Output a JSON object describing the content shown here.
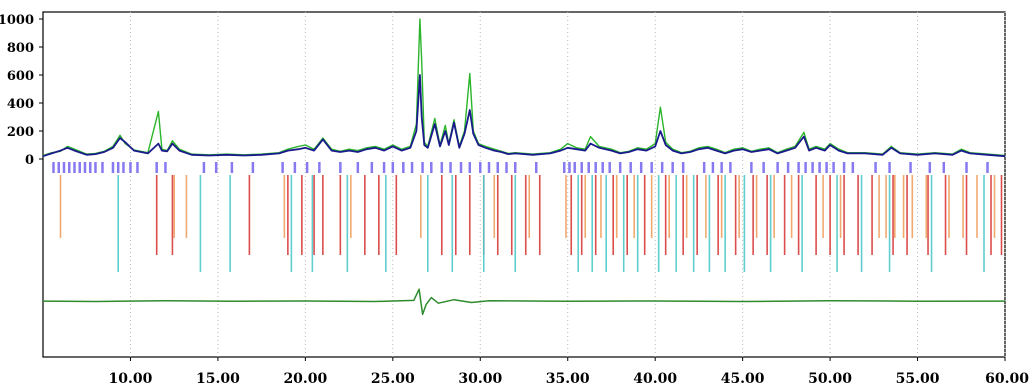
{
  "chart_data": {
    "type": "line",
    "title": "",
    "xlabel": "",
    "ylabel": "",
    "xlim": [
      5.0,
      60.0
    ],
    "ylim": [
      0,
      1000
    ],
    "x_ticks": [
      "10.00",
      "15.00",
      "20.00",
      "25.00",
      "30.00",
      "35.00",
      "40.00",
      "45.00",
      "50.00",
      "55.00",
      "60.00"
    ],
    "y_ticks": [
      "0",
      "200",
      "400",
      "600",
      "800",
      "1000"
    ],
    "grid": "vertical dotted",
    "legend": "none",
    "colors": {
      "observed": "#1a1a8c",
      "calculated": "#2bb52b",
      "difference": "#2e8b2e",
      "reflection_phase_1": "#7b6cf0",
      "reflection_phase_2": "#d93a3a",
      "reflection_phase_3": "#f0a060",
      "reflection_phase_4": "#4fc9c9"
    },
    "series": [
      {
        "role": "observed",
        "x": [
          5.0,
          5.5,
          6.0,
          6.4,
          6.8,
          7.5,
          8.0,
          8.5,
          9.0,
          9.4,
          9.7,
          10.2,
          11.0,
          11.6,
          11.8,
          12.1,
          12.4,
          12.8,
          13.5,
          14.5,
          15.5,
          16.5,
          17.5,
          18.5,
          19.0,
          19.6,
          20.0,
          20.5,
          21.0,
          21.5,
          22.0,
          22.5,
          23.0,
          23.5,
          24.0,
          24.5,
          25.0,
          25.5,
          26.0,
          26.35,
          26.55,
          26.65,
          26.8,
          27.0,
          27.4,
          27.7,
          28.0,
          28.2,
          28.5,
          28.8,
          29.1,
          29.4,
          29.6,
          29.9,
          30.3,
          30.8,
          31.2,
          31.6,
          32.0,
          33.0,
          34.0,
          34.6,
          35.0,
          35.5,
          36.0,
          36.3,
          36.8,
          37.5,
          38.0,
          38.5,
          39.0,
          39.5,
          40.0,
          40.3,
          40.6,
          41.0,
          41.5,
          42.0,
          42.5,
          43.0,
          43.5,
          44.0,
          44.5,
          45.0,
          45.5,
          46.0,
          46.5,
          47.0,
          47.5,
          48.0,
          48.5,
          48.8,
          49.2,
          49.7,
          50.0,
          50.5,
          51.0,
          52.0,
          53.0,
          53.5,
          54.0,
          55.0,
          56.0,
          57.0,
          57.5,
          58.0,
          59.0,
          60.0
        ],
        "y": [
          20,
          40,
          60,
          80,
          60,
          30,
          35,
          50,
          80,
          150,
          120,
          60,
          40,
          110,
          60,
          55,
          110,
          60,
          30,
          25,
          30,
          25,
          30,
          40,
          60,
          70,
          80,
          60,
          140,
          60,
          50,
          60,
          50,
          70,
          80,
          60,
          90,
          60,
          80,
          200,
          600,
          300,
          100,
          80,
          250,
          90,
          200,
          100,
          260,
          80,
          180,
          350,
          180,
          100,
          80,
          60,
          50,
          35,
          40,
          30,
          40,
          60,
          80,
          70,
          60,
          110,
          80,
          60,
          40,
          50,
          70,
          60,
          90,
          200,
          100,
          60,
          40,
          50,
          70,
          80,
          60,
          40,
          60,
          70,
          50,
          60,
          70,
          40,
          60,
          80,
          160,
          60,
          80,
          60,
          100,
          60,
          40,
          40,
          30,
          80,
          40,
          30,
          40,
          30,
          60,
          40,
          30,
          20
        ]
      },
      {
        "role": "calculated",
        "x": [
          5.0,
          5.5,
          6.0,
          6.4,
          6.8,
          7.5,
          8.0,
          8.5,
          9.0,
          9.4,
          9.7,
          10.2,
          11.0,
          11.6,
          11.8,
          12.1,
          12.4,
          12.8,
          13.5,
          14.5,
          15.5,
          16.5,
          17.5,
          18.5,
          19.0,
          19.6,
          20.0,
          20.5,
          21.0,
          21.5,
          22.0,
          22.5,
          23.0,
          23.5,
          24.0,
          24.5,
          25.0,
          25.5,
          26.0,
          26.35,
          26.55,
          26.65,
          26.8,
          27.0,
          27.4,
          27.7,
          28.0,
          28.2,
          28.5,
          28.8,
          29.1,
          29.4,
          29.6,
          29.9,
          30.3,
          30.8,
          31.2,
          31.6,
          32.0,
          33.0,
          34.0,
          34.6,
          35.0,
          35.5,
          36.0,
          36.3,
          36.8,
          37.5,
          38.0,
          38.5,
          39.0,
          39.5,
          40.0,
          40.3,
          40.6,
          41.0,
          41.5,
          42.0,
          42.5,
          43.0,
          43.5,
          44.0,
          44.5,
          45.0,
          45.5,
          46.0,
          46.5,
          47.0,
          47.5,
          48.0,
          48.5,
          48.8,
          49.2,
          49.7,
          50.0,
          50.5,
          51.0,
          52.0,
          53.0,
          53.5,
          54.0,
          55.0,
          56.0,
          57.0,
          57.5,
          58.0,
          59.0,
          60.0
        ],
        "y": [
          25,
          45,
          55,
          90,
          70,
          35,
          40,
          55,
          90,
          170,
          110,
          65,
          45,
          340,
          70,
          60,
          130,
          70,
          35,
          30,
          35,
          30,
          35,
          45,
          70,
          90,
          100,
          70,
          150,
          70,
          55,
          70,
          60,
          80,
          90,
          70,
          100,
          70,
          90,
          250,
          1000,
          700,
          120,
          90,
          290,
          100,
          240,
          110,
          280,
          90,
          200,
          610,
          200,
          110,
          90,
          70,
          55,
          40,
          45,
          35,
          45,
          70,
          110,
          80,
          70,
          160,
          90,
          70,
          45,
          55,
          80,
          70,
          110,
          370,
          120,
          70,
          45,
          55,
          80,
          90,
          70,
          45,
          70,
          80,
          55,
          70,
          80,
          45,
          70,
          90,
          190,
          70,
          90,
          70,
          110,
          70,
          45,
          45,
          35,
          90,
          45,
          35,
          45,
          35,
          70,
          45,
          35,
          25
        ]
      },
      {
        "role": "difference",
        "x": [
          5.0,
          8.0,
          12.0,
          16.0,
          20.0,
          24.0,
          26.2,
          26.5,
          26.7,
          26.9,
          27.2,
          27.6,
          28.5,
          29.5,
          30.5,
          35.0,
          40.0,
          45.0,
          50.0,
          55.0,
          60.0
        ],
        "y": [
          -1015,
          -1018,
          -1012,
          -1016,
          -1014,
          -1018,
          -1010,
          -930,
          -1110,
          -1040,
          -990,
          -1030,
          -1005,
          -1025,
          -1012,
          -1016,
          -1014,
          -1018,
          -1012,
          -1016,
          -1015
        ]
      }
    ],
    "reflection_rows": [
      {
        "phase": "reflection_phase_1",
        "row": 1,
        "x": [
          5.6,
          5.9,
          6.2,
          6.5,
          6.8,
          7.1,
          7.4,
          7.7,
          8.0,
          8.4,
          9.0,
          9.3,
          9.6,
          10.0,
          10.4,
          11.5,
          12.0,
          14.2,
          14.9,
          15.8,
          17.0,
          18.7,
          19.4,
          20.1,
          20.8,
          22.0,
          23.0,
          23.8,
          24.5,
          25.0,
          25.6,
          26.1,
          26.7,
          27.2,
          27.8,
          28.3,
          28.9,
          29.4,
          30.0,
          30.5,
          31.0,
          31.5,
          32.0,
          33.2,
          34.8,
          35.1,
          35.4,
          35.8,
          36.2,
          36.6,
          37.0,
          37.4,
          38.0,
          38.6,
          39.2,
          39.8,
          40.4,
          41.0,
          41.6,
          42.8,
          43.3,
          43.8,
          44.3,
          45.5,
          46.2,
          47.0,
          47.6,
          48.2,
          48.6,
          49.0,
          49.4,
          49.8,
          50.2,
          50.8,
          51.3,
          52.6,
          53.4,
          54.6,
          55.7,
          56.5,
          57.8,
          59.0
        ]
      },
      {
        "phase": "reflection_phase_2",
        "row": 2,
        "x": [
          11.5,
          12.4,
          16.8,
          19.0,
          19.8,
          20.5,
          21.0,
          22.0,
          23.4,
          24.2,
          25.2,
          27.8,
          28.6,
          29.4,
          30.2,
          31.0,
          31.8,
          32.6,
          33.4,
          35.2,
          35.8,
          36.6,
          37.6,
          38.4,
          39.4,
          40.6,
          41.6,
          42.4,
          43.6,
          44.6,
          45.6,
          46.4,
          47.4,
          48.2,
          49.2,
          50.0,
          50.8,
          51.6,
          52.4,
          53.6,
          54.4,
          55.6,
          56.6,
          57.8,
          59.2,
          59.8
        ]
      },
      {
        "phase": "reflection_phase_3",
        "row": 3,
        "x": [
          6.0,
          12.5,
          13.2,
          18.8,
          22.6,
          26.6,
          30.8,
          32.8,
          34.9,
          36.0,
          36.9,
          37.8,
          38.8,
          39.8,
          40.8,
          41.8,
          42.9,
          43.8,
          44.8,
          45.8,
          46.8,
          47.8,
          49.6,
          50.6,
          52.8,
          53.2,
          53.7,
          54.2,
          54.7,
          55.5,
          56.8,
          57.6,
          58.4,
          59.4
        ]
      },
      {
        "phase": "reflection_phase_4",
        "row": 4,
        "x": [
          9.3,
          14.0,
          15.7,
          19.2,
          20.4,
          22.4,
          24.6,
          27.0,
          28.4,
          30.2,
          32.0,
          35.6,
          36.4,
          37.2,
          38.2,
          39.0,
          40.2,
          41.2,
          42.2,
          43.1,
          44.0,
          45.1,
          46.6,
          48.4,
          50.4,
          51.8,
          53.4,
          55.8,
          58.8
        ]
      }
    ]
  }
}
